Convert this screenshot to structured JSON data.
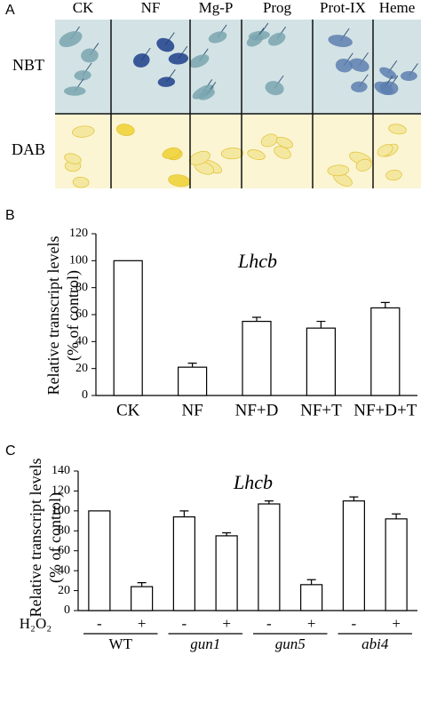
{
  "panel_a": {
    "label": "A",
    "columns": [
      "CK",
      "NF",
      "Mg-P",
      "Prog",
      "Prot-IX",
      "Heme"
    ],
    "rows": [
      "NBT",
      "DAB"
    ]
  },
  "chart_data": [
    {
      "type": "bar",
      "panel_label": "B",
      "title": "Lhcb",
      "y_label": [
        "Relative transcript levels",
        "(% of control)"
      ],
      "categories": [
        "CK",
        "NF",
        "NF+D",
        "NF+T",
        "NF+D+T"
      ],
      "values": [
        100,
        21,
        55,
        50,
        65
      ],
      "errors": [
        0,
        3,
        3,
        5,
        4
      ],
      "color": "#ffffff",
      "ylim": [
        0,
        120
      ],
      "yticks": [
        0,
        20,
        40,
        60,
        80,
        100,
        120
      ]
    },
    {
      "type": "bar",
      "panel_label": "C",
      "title": "Lhcb",
      "y_label": [
        "Relative transcript levels",
        "(% of control)"
      ],
      "treatment_label": "H₂O₂",
      "categories": [
        "-",
        "+",
        "-",
        "+",
        "-",
        "+",
        "-",
        "+"
      ],
      "groups": [
        "WT",
        "gun1",
        "gun5",
        "abi4"
      ],
      "values": [
        100,
        24,
        94,
        75,
        107,
        26,
        110,
        92
      ],
      "errors": [
        0,
        4,
        6,
        3,
        3,
        5,
        4,
        5
      ],
      "color": "#ffffff",
      "ylim": [
        0,
        140
      ],
      "yticks": [
        0,
        20,
        40,
        60,
        80,
        100,
        120,
        140
      ]
    }
  ]
}
